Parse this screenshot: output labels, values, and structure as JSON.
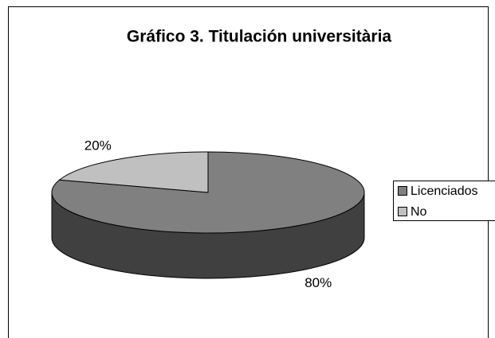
{
  "chart_data": {
    "type": "pie",
    "title": "Gráfico 3. Titulación universitària",
    "categories": [
      "Licenciados",
      "No"
    ],
    "values": [
      80,
      20
    ],
    "value_labels": [
      "80%",
      "20%"
    ],
    "colors": [
      "#808080",
      "#c0c0c0"
    ],
    "legend": "right",
    "style": "3d"
  }
}
